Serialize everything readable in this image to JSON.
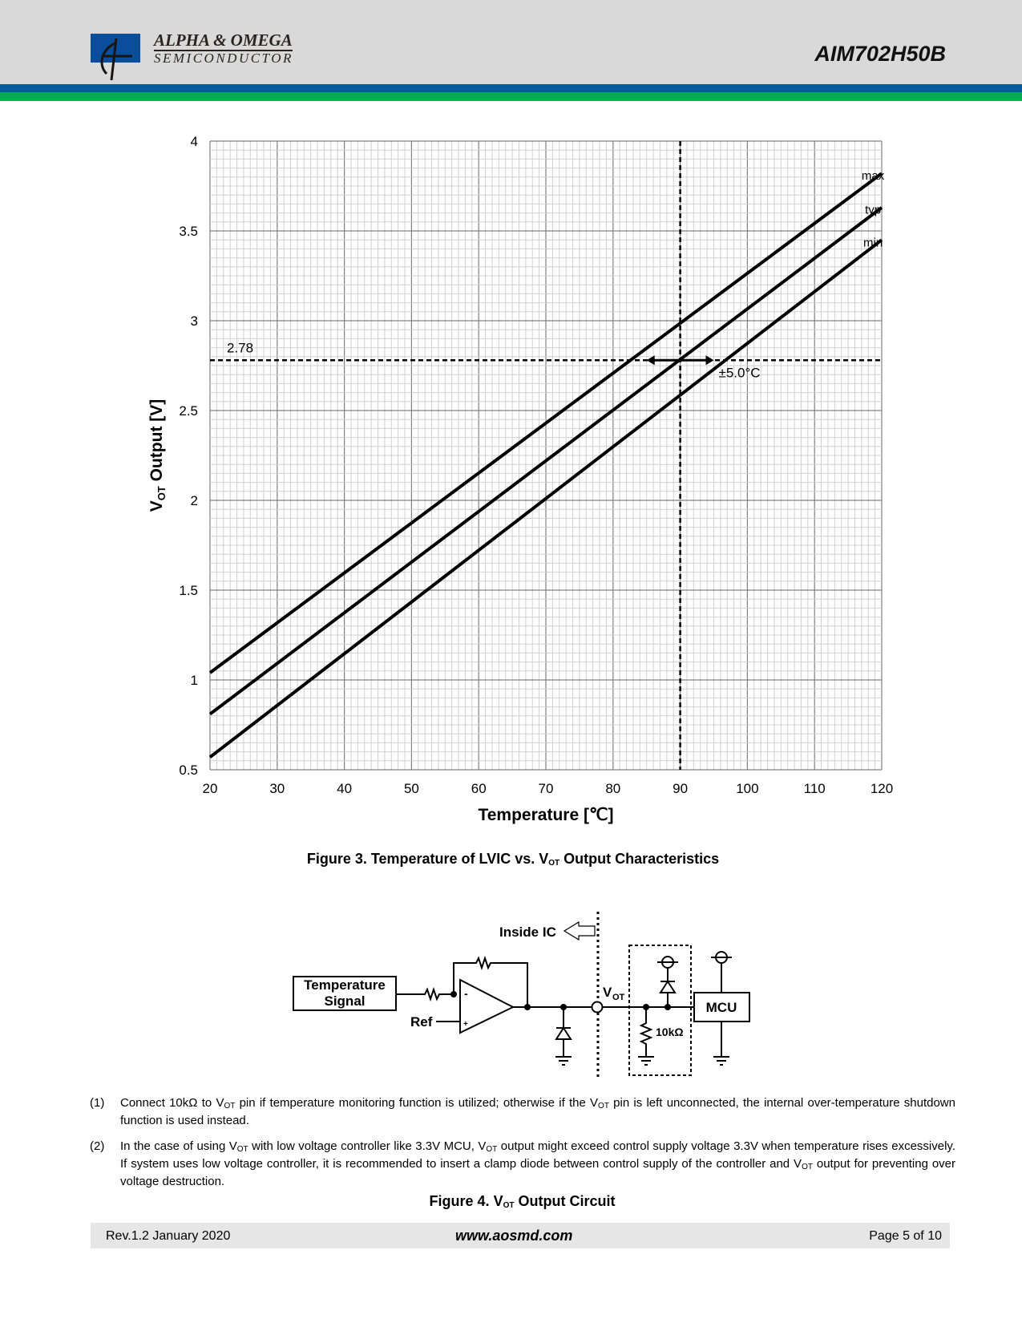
{
  "header": {
    "logo_line1": "ALPHA & OMEGA",
    "logo_line2": "SEMICONDUCTOR",
    "part_number": "AIM702H50B",
    "colors": {
      "band_blue": "#005a9c",
      "band_green": "#07ab4f"
    }
  },
  "chart_data": {
    "type": "line",
    "xlabel": "Temperature [℃]",
    "ylabel_main": "V",
    "ylabel_sub": "OT",
    "ylabel_rest": " Output [V]",
    "xlim": [
      20,
      120
    ],
    "ylim": [
      0.5,
      4
    ],
    "xticks": [
      20,
      30,
      40,
      50,
      60,
      70,
      80,
      90,
      100,
      110,
      120
    ],
    "yticks": [
      0.5,
      1,
      1.5,
      2,
      2.5,
      3,
      3.5,
      4
    ],
    "ytick_labels": [
      "0.5",
      "1",
      "1.5",
      "2",
      "2.5",
      "3",
      "3.5",
      "4"
    ],
    "grid": true,
    "series": [
      {
        "name": "max",
        "x": [
          20,
          120
        ],
        "y": [
          1.04,
          3.82
        ]
      },
      {
        "name": "typ",
        "x": [
          20,
          120
        ],
        "y": [
          0.81,
          3.63
        ]
      },
      {
        "name": "min",
        "x": [
          20,
          120
        ],
        "y": [
          0.57,
          3.45
        ]
      }
    ],
    "reference": {
      "y": 2.78,
      "y_label": "2.78",
      "x": 90,
      "tolerance_label": "±5.0°C",
      "tolerance_range": [
        85,
        95
      ]
    }
  },
  "figure3": {
    "caption_pre": "Figure 3. Temperature of LVIC vs. V",
    "caption_sub": "OT",
    "caption_post": " Output Characteristics"
  },
  "circuit": {
    "temp_line1": "Temperature",
    "temp_line2": "Signal",
    "ref": "Ref",
    "inside_ic": "Inside IC",
    "vot": "V",
    "vot_sub": "OT",
    "resistor": "10kΩ",
    "mcu": "MCU",
    "minus": "-",
    "plus": "+"
  },
  "notes": [
    {
      "num": "(1)",
      "parts": [
        "Connect 10kΩ to V",
        "OT",
        " pin if temperature monitoring function is utilized; otherwise if the V",
        "OT",
        " pin is left unconnected, the internal over-temperature shutdown function is used instead."
      ]
    },
    {
      "num": "(2)",
      "parts": [
        "In the case of using V",
        "OT",
        " with low voltage controller like 3.3V MCU, V",
        "OT",
        " output might exceed control supply voltage 3.3V when temperature rises excessively. If system uses low voltage controller, it is recommended to insert a clamp diode between control supply of the controller and V",
        "OT",
        " output for preventing over voltage destruction."
      ]
    }
  ],
  "figure4": {
    "caption_pre": "Figure 4. V",
    "caption_sub": "OT",
    "caption_post": " Output Circuit"
  },
  "footer": {
    "rev": "Rev.1.2 January 2020",
    "url": "www.aosmd.com",
    "page": "Page 5 of 10"
  }
}
